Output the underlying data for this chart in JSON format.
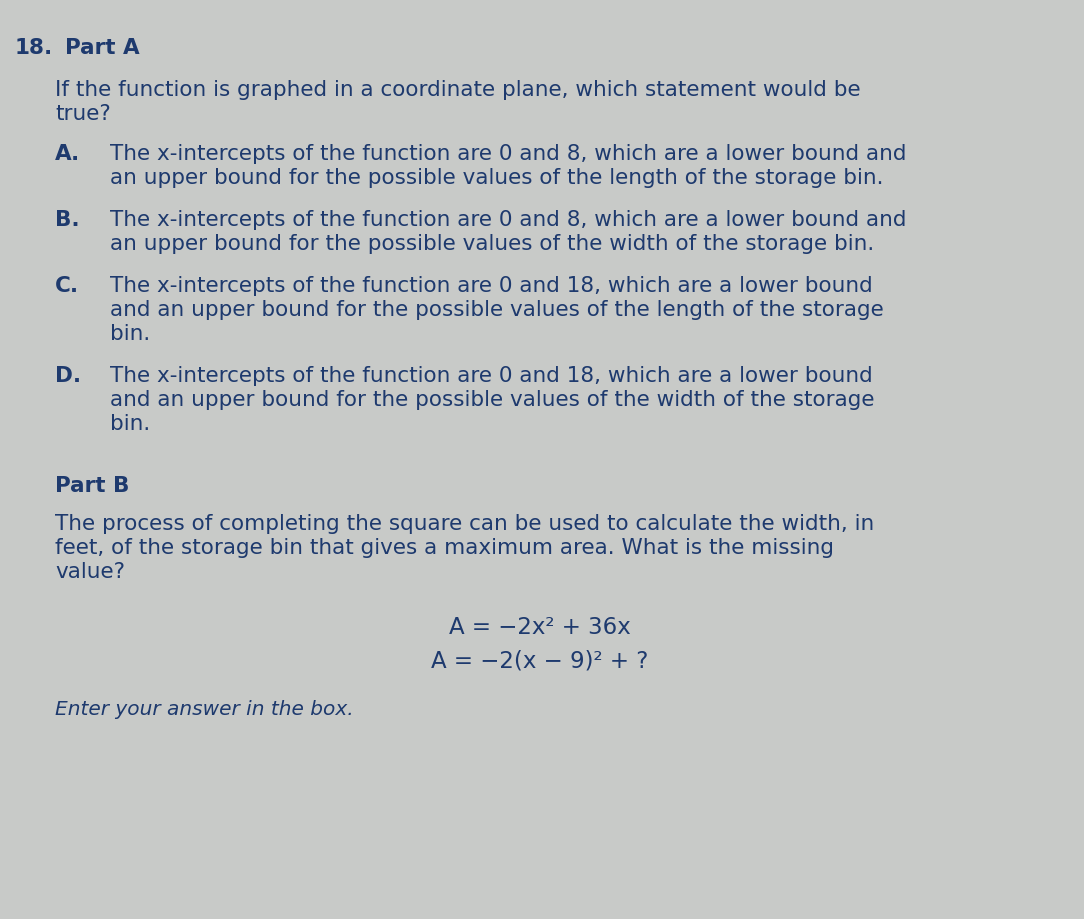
{
  "background_color": "#c8cac8",
  "text_color": "#1e3a6e",
  "question_number": "18.",
  "part_a_label": "Part A",
  "part_a_question_line1": "If the function is graphed in a coordinate plane, which statement would be",
  "part_a_question_line2": "true?",
  "options": [
    {
      "label": "A.",
      "lines": [
        "The x-intercepts of the function are 0 and 8, which are a lower bound and",
        "an upper bound for the possible values of the length of the storage bin."
      ]
    },
    {
      "label": "B.",
      "lines": [
        "The x-intercepts of the function are 0 and 8, which are a lower bound and",
        "an upper bound for the possible values of the width of the storage bin."
      ]
    },
    {
      "label": "C.",
      "lines": [
        "The x-intercepts of the function are 0 and 18, which are a lower bound",
        "and an upper bound for the possible values of the length of the storage",
        "bin."
      ]
    },
    {
      "label": "D.",
      "lines": [
        "The x-intercepts of the function are 0 and 18, which are a lower bound",
        "and an upper bound for the possible values of the width of the storage",
        "bin."
      ]
    }
  ],
  "part_b_label": "Part B",
  "part_b_lines": [
    "The process of completing the square can be used to calculate the width, in",
    "feet, of the storage bin that gives a maximum area. What is the missing",
    "value?"
  ],
  "eq1": "A = −2x² + 36x",
  "eq2": "A = −2(x − 9)² + ?",
  "footer": "Enter your answer in the box.",
  "fs": 15.5,
  "fs_eq": 16.5
}
